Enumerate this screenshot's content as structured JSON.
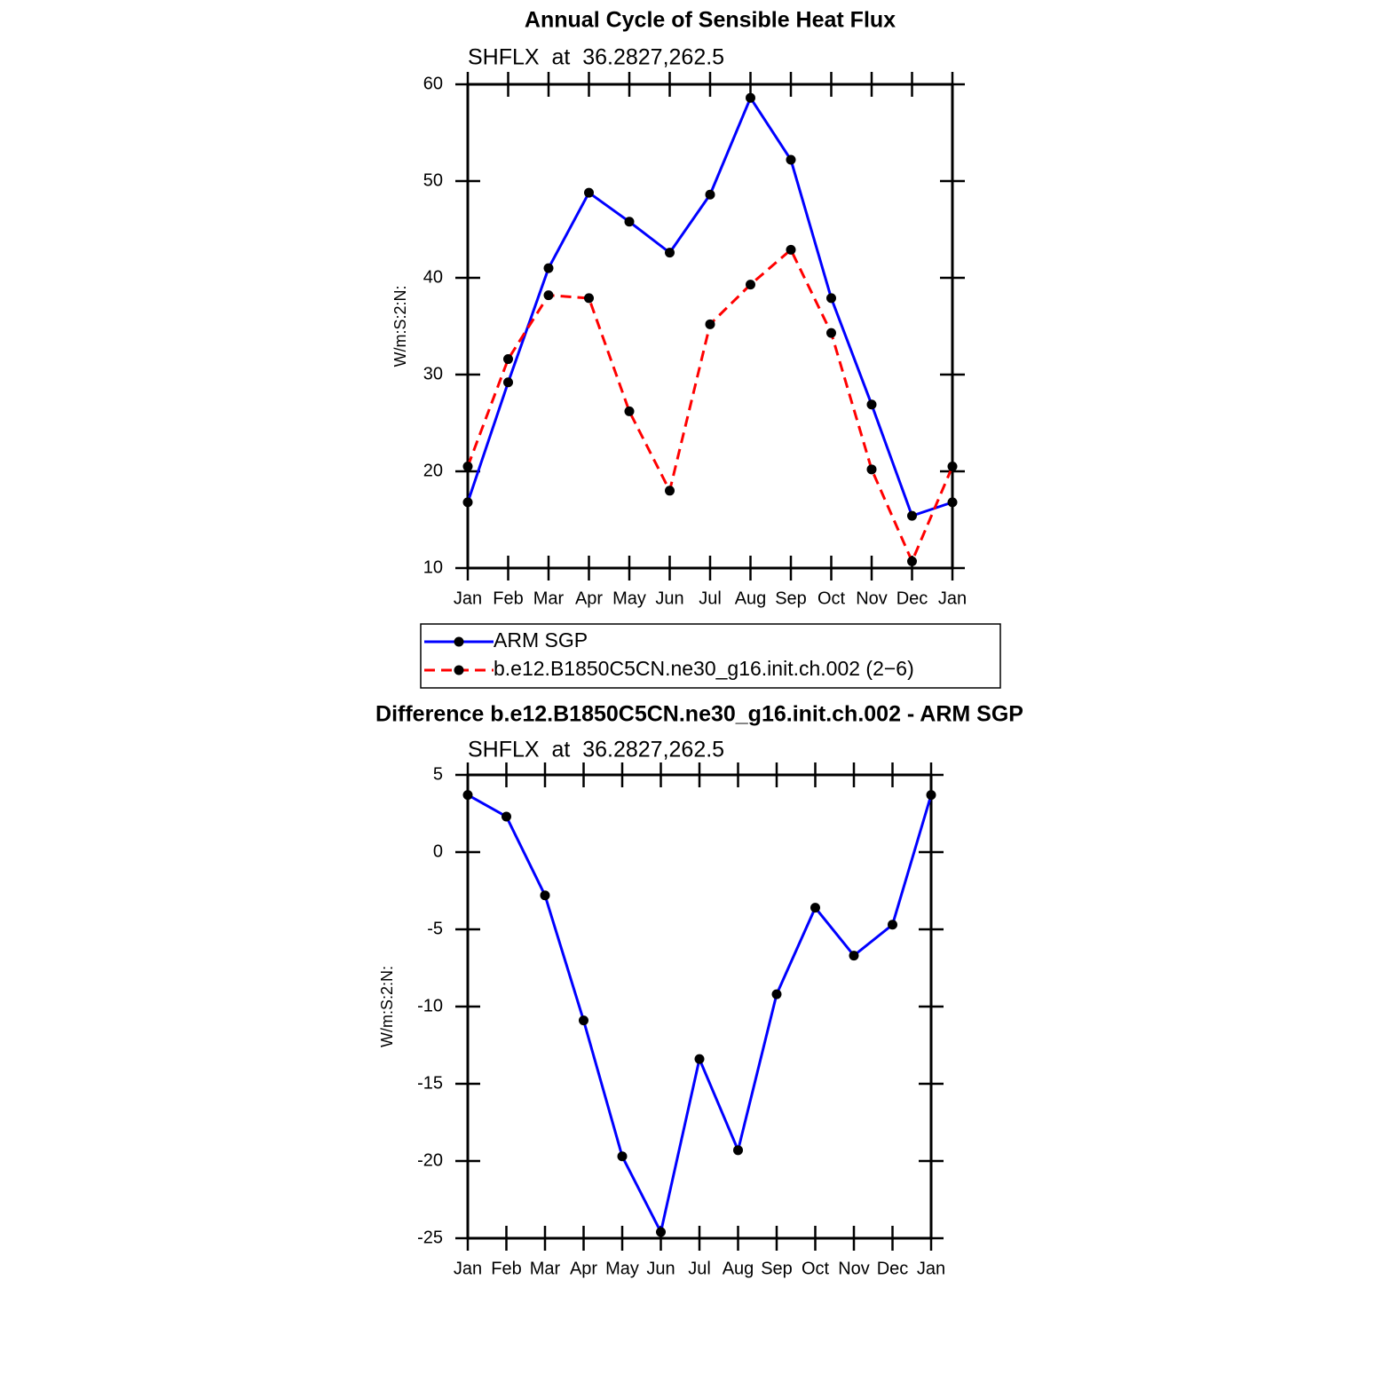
{
  "chart_data": [
    {
      "type": "line",
      "title": "Annual Cycle of Sensible Heat Flux",
      "subtitle": "SHFLX  at  36.2827,262.5",
      "y_label": "W/m:S:2:N:",
      "categories": [
        "Jan",
        "Feb",
        "Mar",
        "Apr",
        "May",
        "Jun",
        "Jul",
        "Aug",
        "Sep",
        "Oct",
        "Nov",
        "Dec",
        "Jan"
      ],
      "ylim": [
        10,
        60
      ],
      "yticks": [
        10,
        20,
        30,
        40,
        50,
        60
      ],
      "grid": false,
      "legend": "below",
      "series": [
        {
          "name": "ARM SGP",
          "color": "#0000ff",
          "line_style": "solid",
          "values": [
            16.8,
            29.2,
            41.0,
            48.8,
            45.8,
            42.6,
            48.6,
            58.6,
            52.2,
            37.9,
            26.9,
            15.4,
            16.8
          ]
        },
        {
          "name": "b.e12.B1850C5CN.ne30_g16.init.ch.002 (2−6)",
          "color": "#ff0000",
          "line_style": "dashed",
          "values": [
            20.5,
            31.6,
            38.2,
            37.9,
            26.2,
            18.0,
            35.2,
            39.3,
            42.9,
            34.3,
            20.2,
            10.7,
            20.5
          ]
        }
      ]
    },
    {
      "type": "line",
      "title": "Difference b.e12.B1850C5CN.ne30_g16.init.ch.002 - ARM SGP",
      "subtitle": "SHFLX  at  36.2827,262.5",
      "y_label": "W/m:S:2:N:",
      "categories": [
        "Jan",
        "Feb",
        "Mar",
        "Apr",
        "May",
        "Jun",
        "Jul",
        "Aug",
        "Sep",
        "Oct",
        "Nov",
        "Dec",
        "Jan"
      ],
      "ylim": [
        -25,
        5
      ],
      "yticks": [
        -25,
        -20,
        -15,
        -10,
        -5,
        0,
        5
      ],
      "grid": false,
      "series": [
        {
          "color": "#0000ff",
          "line_style": "solid",
          "values": [
            3.7,
            2.3,
            -2.8,
            -10.9,
            -19.7,
            -24.6,
            -13.4,
            -19.3,
            -9.2,
            -3.6,
            -6.7,
            -4.7,
            3.7
          ]
        }
      ]
    }
  ]
}
